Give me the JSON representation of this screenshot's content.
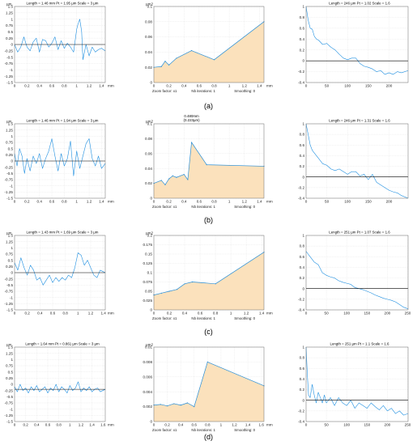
{
  "chart_data": [
    {
      "row": 0,
      "col": 0,
      "type": "line",
      "title": "Length = 1.46 mm  Pt = 1.95 µm  Scale = 3 µm",
      "ylabel": "µm",
      "xlim": [
        0,
        1.46
      ],
      "ylim": [
        -1.5,
        1.5
      ],
      "xticks": [
        0,
        0.2,
        0.4,
        0.6,
        0.8,
        1,
        1.2,
        1.4
      ],
      "yticks": [
        -1.5,
        -1.25,
        -1,
        -0.75,
        -0.5,
        -0.25,
        0,
        0.25,
        0.5,
        0.75,
        1,
        1.25,
        1.5
      ],
      "xunit": "mm",
      "grid": true,
      "color": "#1f8fe0",
      "baseline": 0,
      "x": [
        0,
        0.05,
        0.1,
        0.15,
        0.2,
        0.25,
        0.3,
        0.35,
        0.4,
        0.45,
        0.5,
        0.55,
        0.6,
        0.65,
        0.7,
        0.75,
        0.8,
        0.85,
        0.9,
        0.95,
        1,
        1.02,
        1.05,
        1.08,
        1.1,
        1.15,
        1.2,
        1.25,
        1.3,
        1.35,
        1.4,
        1.46
      ],
      "y": [
        0,
        -0.3,
        -0.1,
        0.3,
        -0.1,
        -0.25,
        0.1,
        0.25,
        -0.3,
        0.2,
        0.15,
        -0.1,
        0.05,
        0.3,
        -0.2,
        0.15,
        -0.15,
        0.05,
        -0.1,
        -0.3,
        0.6,
        0.8,
        1.0,
        0.5,
        -0.6,
        0,
        -0.45,
        -0.1,
        -0.3,
        -0.2,
        -0.15,
        -0.25
      ]
    },
    {
      "row": 0,
      "col": 1,
      "type": "area",
      "ylabel": "µm2",
      "xlim": [
        0,
        1.46
      ],
      "ylim": [
        0,
        0.1
      ],
      "xticks": [
        0,
        0.2,
        0.4,
        0.6,
        0.8,
        1,
        1.2,
        1.4
      ],
      "yticks": [
        0,
        0.02,
        0.04,
        0.06,
        0.08,
        0.1
      ],
      "xunit": "mm",
      "grid": true,
      "color": "#2a8fd6",
      "fill": "#fbe1bc",
      "footer": [
        "Zoom factor: x1",
        "Nb iterations: 1",
        "Smoothing: 0"
      ],
      "x": [
        0,
        0.1,
        0.15,
        0.2,
        0.3,
        0.5,
        0.8,
        1.46
      ],
      "y": [
        0.02,
        0.021,
        0.028,
        0.023,
        0.032,
        0.042,
        0.03,
        0.08
      ]
    },
    {
      "row": 0,
      "col": 2,
      "type": "line",
      "title": "Length = 246 µm  Pt = 1.02  Scale = 1.6",
      "xlim": [
        0,
        246
      ],
      "ylim": [
        -0.4,
        1
      ],
      "xticks": [
        0,
        50,
        100,
        150,
        200
      ],
      "yticks": [
        -0.4,
        -0.2,
        0,
        0.2,
        0.4,
        0.6,
        0.8,
        1
      ],
      "grid": true,
      "color": "#1f8fe0",
      "baseline": 0,
      "x": [
        0,
        5,
        10,
        15,
        20,
        25,
        30,
        40,
        50,
        60,
        70,
        80,
        90,
        100,
        110,
        120,
        130,
        140,
        150,
        160,
        170,
        180,
        190,
        200,
        210,
        220,
        230,
        246
      ],
      "y": [
        1,
        0.75,
        0.6,
        0.58,
        0.45,
        0.4,
        0.38,
        0.3,
        0.32,
        0.25,
        0.2,
        0.12,
        0.05,
        0.02,
        0.05,
        0.05,
        -0.05,
        -0.1,
        -0.12,
        -0.15,
        -0.2,
        -0.18,
        -0.25,
        -0.22,
        -0.25,
        -0.2,
        -0.22,
        -0.18
      ]
    },
    {
      "row": 1,
      "col": 0,
      "type": "line",
      "title": "Length = 1.46 mm  Pt = 1.94 µm  Scale = 3 µm",
      "ylabel": "µm",
      "xlim": [
        0,
        1.46
      ],
      "ylim": [
        -1.5,
        1.5
      ],
      "xticks": [
        0,
        0.2,
        0.4,
        0.6,
        0.8,
        1,
        1.2,
        1.4
      ],
      "yticks": [
        -1.5,
        -1.25,
        -1,
        -0.75,
        -0.5,
        -0.25,
        0,
        0.25,
        0.5,
        0.75,
        1,
        1.25,
        1.5
      ],
      "xunit": "mm",
      "grid": true,
      "color": "#1f8fe0",
      "baseline": 0,
      "x": [
        0,
        0.04,
        0.08,
        0.12,
        0.16,
        0.2,
        0.25,
        0.3,
        0.35,
        0.4,
        0.45,
        0.5,
        0.55,
        0.6,
        0.65,
        0.7,
        0.75,
        0.8,
        0.85,
        0.9,
        0.95,
        1,
        1.05,
        1.1,
        1.15,
        1.2,
        1.25,
        1.3,
        1.35,
        1.4,
        1.46
      ],
      "y": [
        0.3,
        -0.2,
        0.5,
        0.2,
        -0.5,
        0.1,
        -0.4,
        0.2,
        -0.1,
        0.3,
        -0.3,
        0.1,
        0.4,
        0.9,
        0.2,
        -0.4,
        0.3,
        -0.2,
        0.1,
        0.8,
        -0.6,
        0.4,
        -0.3,
        0.2,
        0.7,
        0.9,
        0.1,
        -0.2,
        0.2,
        -0.3,
        -0.1
      ]
    },
    {
      "row": 1,
      "col": 1,
      "type": "area",
      "ylabel": "µm2",
      "annotation": [
        "0.480mm",
        "(0.223µm)"
      ],
      "xlim": [
        0,
        1.46
      ],
      "ylim": [
        0,
        0.1
      ],
      "xticks": [
        0,
        0.2,
        0.4,
        0.6,
        0.8,
        1,
        1.2,
        1.4
      ],
      "yticks": [
        0,
        0.02,
        0.04,
        0.06,
        0.08,
        0.1
      ],
      "xunit": "mm",
      "grid": true,
      "color": "#2a8fd6",
      "fill": "#fbe1bc",
      "footer": [
        "Zoom factor: x1",
        "Nb iterations: 1",
        "Smoothing: 0"
      ],
      "x": [
        0,
        0.1,
        0.15,
        0.2,
        0.25,
        0.3,
        0.4,
        0.45,
        0.5,
        0.7,
        1.46
      ],
      "y": [
        0.02,
        0.024,
        0.018,
        0.026,
        0.03,
        0.028,
        0.032,
        0.025,
        0.075,
        0.045,
        0.043
      ]
    },
    {
      "row": 1,
      "col": 2,
      "type": "line",
      "title": "Length = 246 µm  Pt = 1.31  Scale = 1.6",
      "xlim": [
        0,
        246
      ],
      "ylim": [
        -0.4,
        1
      ],
      "xticks": [
        0,
        50,
        100,
        150,
        200
      ],
      "yticks": [
        -0.4,
        -0.2,
        0,
        0.2,
        0.4,
        0.6,
        0.8,
        1
      ],
      "grid": true,
      "color": "#1f8fe0",
      "baseline": 0,
      "x": [
        0,
        5,
        10,
        15,
        20,
        25,
        30,
        40,
        50,
        60,
        70,
        80,
        90,
        100,
        110,
        120,
        130,
        140,
        150,
        160,
        170,
        180,
        190,
        200,
        210,
        220,
        230,
        246
      ],
      "y": [
        1,
        0.8,
        0.6,
        0.5,
        0.45,
        0.4,
        0.35,
        0.25,
        0.22,
        0.15,
        0.12,
        0.15,
        0.1,
        0.05,
        0.1,
        0.1,
        0.02,
        0.05,
        -0.05,
        0.05,
        -0.1,
        -0.15,
        -0.2,
        -0.25,
        -0.28,
        -0.3,
        -0.35,
        -0.4
      ]
    },
    {
      "row": 2,
      "col": 0,
      "type": "line",
      "title": "Length = 1.43 mm  Pt = 1.69 µm  Scale = 3 µm",
      "ylabel": "µm",
      "xlim": [
        0,
        1.43
      ],
      "ylim": [
        -1.5,
        1.5
      ],
      "xticks": [
        0,
        0.2,
        0.4,
        0.6,
        0.8,
        1,
        1.2,
        1.4
      ],
      "yticks": [
        -1.5,
        -1.25,
        -1,
        -0.75,
        -0.5,
        -0.25,
        0,
        0.25,
        0.5,
        0.75,
        1,
        1.25,
        1.5
      ],
      "xunit": "mm",
      "grid": true,
      "color": "#1f8fe0",
      "baseline": 0,
      "x": [
        0,
        0.05,
        0.1,
        0.15,
        0.2,
        0.25,
        0.3,
        0.35,
        0.4,
        0.45,
        0.5,
        0.55,
        0.6,
        0.65,
        0.7,
        0.75,
        0.8,
        0.85,
        0.9,
        0.95,
        1,
        1.05,
        1.1,
        1.15,
        1.2,
        1.25,
        1.3,
        1.35,
        1.43
      ],
      "y": [
        0.4,
        0.1,
        0.6,
        0.2,
        -0.1,
        0.3,
        0.1,
        -0.3,
        -0.2,
        -0.5,
        -0.3,
        -0.1,
        -0.4,
        -0.2,
        -0.35,
        -0.2,
        -0.3,
        -0.1,
        -0.2,
        0.2,
        0.8,
        0.7,
        0.3,
        0.5,
        0.2,
        -0.1,
        -0.2,
        0.1,
        0
      ]
    },
    {
      "row": 2,
      "col": 1,
      "type": "area",
      "ylabel": "µm2",
      "xlim": [
        0,
        1.43
      ],
      "ylim": [
        0,
        0.2
      ],
      "xticks": [
        0,
        0.2,
        0.4,
        0.6,
        0.8,
        1,
        1.2,
        1.4
      ],
      "yticks": [
        0,
        0.025,
        0.05,
        0.075,
        0.1,
        0.125,
        0.15,
        0.175,
        0.2
      ],
      "xunit": "mm",
      "grid": true,
      "color": "#2a8fd6",
      "fill": "#fbe1bc",
      "footer": [
        "Zoom factor: x1",
        "Nb iterations: 1",
        "Smoothing: 0"
      ],
      "x": [
        0,
        0.1,
        0.2,
        0.3,
        0.4,
        0.5,
        0.8,
        1.43
      ],
      "y": [
        0.04,
        0.045,
        0.05,
        0.055,
        0.07,
        0.075,
        0.07,
        0.155
      ]
    },
    {
      "row": 2,
      "col": 2,
      "type": "line",
      "title": "Length = 251 µm  Pt = 1.07  Scale = 1.6",
      "xlim": [
        0,
        251
      ],
      "ylim": [
        -0.4,
        1
      ],
      "xticks": [
        0,
        50,
        100,
        150,
        200,
        250
      ],
      "yticks": [
        -0.4,
        -0.2,
        0,
        0.2,
        0.4,
        0.6,
        0.8,
        1
      ],
      "grid": true,
      "color": "#1f8fe0",
      "baseline": 0,
      "x": [
        0,
        5,
        10,
        20,
        30,
        40,
        50,
        60,
        70,
        80,
        90,
        100,
        110,
        120,
        130,
        140,
        150,
        160,
        170,
        180,
        190,
        200,
        210,
        220,
        230,
        240,
        251
      ],
      "y": [
        0.7,
        0.65,
        0.6,
        0.5,
        0.45,
        0.3,
        0.25,
        0.22,
        0.2,
        0.15,
        0.12,
        0.1,
        0.08,
        0.02,
        0.0,
        -0.02,
        -0.05,
        -0.08,
        -0.12,
        -0.15,
        -0.18,
        -0.2,
        -0.22,
        -0.25,
        -0.3,
        -0.35,
        -0.38
      ]
    },
    {
      "row": 3,
      "col": 0,
      "type": "line",
      "title": "Length = 1.64 mm  Pt = 0.861 µm  Scale = 3 µm",
      "ylabel": "µm",
      "xlim": [
        0,
        1.64
      ],
      "ylim": [
        -1.5,
        1.5
      ],
      "xticks": [
        0,
        0.2,
        0.4,
        0.6,
        0.8,
        1,
        1.2,
        1.4,
        1.6
      ],
      "yticks": [
        -1.5,
        -1.25,
        -1,
        -0.75,
        -0.5,
        -0.25,
        0,
        0.25,
        0.5,
        0.75,
        1,
        1.25,
        1.5
      ],
      "xunit": "mm",
      "grid": true,
      "color": "#1f8fe0",
      "baseline": -0.2,
      "x": [
        0,
        0.05,
        0.1,
        0.15,
        0.2,
        0.25,
        0.3,
        0.35,
        0.4,
        0.45,
        0.5,
        0.55,
        0.6,
        0.65,
        0.7,
        0.75,
        0.8,
        0.85,
        0.9,
        0.95,
        1,
        1.05,
        1.1,
        1.15,
        1.2,
        1.25,
        1.3,
        1.35,
        1.4,
        1.45,
        1.5,
        1.55,
        1.64
      ],
      "y": [
        -0.1,
        -0.3,
        0,
        -0.25,
        -0.15,
        -0.35,
        -0.1,
        -0.25,
        -0.05,
        -0.3,
        -0.2,
        -0.1,
        -0.35,
        -0.15,
        -0.25,
        0,
        -0.3,
        -0.1,
        -0.2,
        -0.35,
        -0.05,
        -0.25,
        -0.15,
        0.1,
        -0.3,
        -0.15,
        -0.25,
        -0.1,
        -0.3,
        -0.2,
        -0.15,
        -0.3,
        -0.2
      ]
    },
    {
      "row": 3,
      "col": 1,
      "type": "area",
      "ylabel": "µm2",
      "xlim": [
        0,
        1.64
      ],
      "ylim": [
        0,
        0.01
      ],
      "xticks": [
        0,
        0.2,
        0.4,
        0.6,
        0.8,
        1,
        1.2,
        1.4,
        1.6
      ],
      "yticks": [
        0,
        0.002,
        0.004,
        0.006,
        0.008,
        0.01
      ],
      "xunit": "mm",
      "grid": true,
      "color": "#2a8fd6",
      "fill": "#fbe1bc",
      "footer": [
        "Zoom factor: x1",
        "Nb iterations: 1",
        "Smoothing: 0"
      ],
      "x": [
        0,
        0.1,
        0.2,
        0.3,
        0.4,
        0.5,
        0.6,
        0.8,
        1.64
      ],
      "y": [
        0.0022,
        0.0023,
        0.0021,
        0.0024,
        0.0022,
        0.0025,
        0.002,
        0.008,
        0.0048
      ]
    },
    {
      "row": 3,
      "col": 2,
      "type": "line",
      "title": "Length = 251 µm  Pt = 1.1  Scale = 1.6",
      "xlim": [
        0,
        251
      ],
      "ylim": [
        -0.4,
        1
      ],
      "xticks": [
        0,
        50,
        100,
        150,
        200,
        250
      ],
      "yticks": [
        -0.4,
        -0.2,
        0,
        0.2,
        0.4,
        0.6,
        0.8,
        1
      ],
      "grid": true,
      "color": "#1f8fe0",
      "baseline": 0,
      "x": [
        0,
        3,
        6,
        10,
        15,
        20,
        25,
        30,
        35,
        40,
        45,
        50,
        60,
        70,
        80,
        90,
        100,
        110,
        120,
        130,
        140,
        150,
        160,
        170,
        180,
        190,
        200,
        210,
        220,
        230,
        240,
        251
      ],
      "y": [
        1,
        0.5,
        0.1,
        0.05,
        0.3,
        0.1,
        -0.05,
        0.15,
        0.05,
        -0.05,
        0.1,
        -0.05,
        0.05,
        -0.1,
        0.05,
        -0.05,
        -0.1,
        0,
        -0.15,
        -0.05,
        -0.1,
        -0.15,
        -0.05,
        -0.12,
        -0.18,
        -0.1,
        -0.2,
        -0.15,
        -0.25,
        -0.2,
        -0.28,
        -0.25
      ]
    }
  ],
  "subfigure_labels": [
    "(a)",
    "(b)",
    "(c)",
    "(d)"
  ]
}
